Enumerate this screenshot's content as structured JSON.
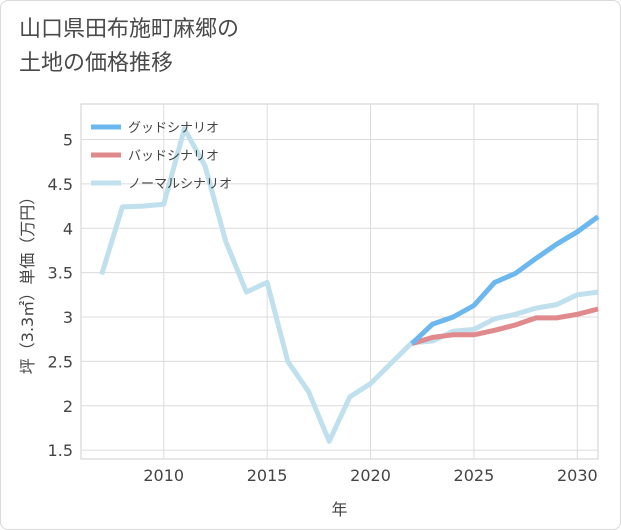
{
  "page": {
    "title_line1": "山口県田布施町麻郷の",
    "title_line2": "土地の価格推移"
  },
  "chart_data": {
    "type": "line",
    "xlabel": "年",
    "ylabel": "坪（3.3㎡）単価（万円）",
    "xlim": [
      2006,
      2031
    ],
    "ylim": [
      1.4,
      5.4
    ],
    "x_ticks": [
      2010,
      2015,
      2020,
      2025,
      2030
    ],
    "y_ticks": [
      1.5,
      2,
      2.5,
      3,
      3.5,
      4,
      4.5,
      5
    ],
    "grid": true,
    "legend_position": "top-left",
    "series": [
      {
        "name": "グッドシナリオ",
        "color": "#6cb8ee",
        "x": [
          2022,
          2023,
          2024,
          2025,
          2026,
          2027,
          2028,
          2029,
          2030,
          2031
        ],
        "y": [
          2.7,
          2.92,
          3.0,
          3.13,
          3.39,
          3.49,
          3.66,
          3.82,
          3.96,
          4.13
        ]
      },
      {
        "name": "バッドシナリオ",
        "color": "#e08a8e",
        "x": [
          2022,
          2023,
          2024,
          2025,
          2026,
          2027,
          2028,
          2029,
          2030,
          2031
        ],
        "y": [
          2.7,
          2.77,
          2.8,
          2.8,
          2.85,
          2.91,
          2.99,
          2.99,
          3.03,
          3.09
        ]
      },
      {
        "name": "ノーマルシナリオ",
        "color": "#bfe0ec",
        "x": [
          2007,
          2008,
          2009,
          2010,
          2011,
          2012,
          2013,
          2014,
          2015,
          2016,
          2017,
          2018,
          2019,
          2020,
          2021,
          2022,
          2023,
          2024,
          2025,
          2026,
          2027,
          2028,
          2029,
          2030,
          2031
        ],
        "y": [
          3.48,
          4.24,
          4.25,
          4.27,
          5.12,
          4.7,
          3.85,
          3.28,
          3.39,
          2.5,
          2.16,
          1.6,
          2.1,
          2.25,
          2.48,
          2.71,
          2.73,
          2.84,
          2.86,
          2.98,
          3.03,
          3.1,
          3.14,
          3.25,
          3.28
        ]
      }
    ]
  }
}
